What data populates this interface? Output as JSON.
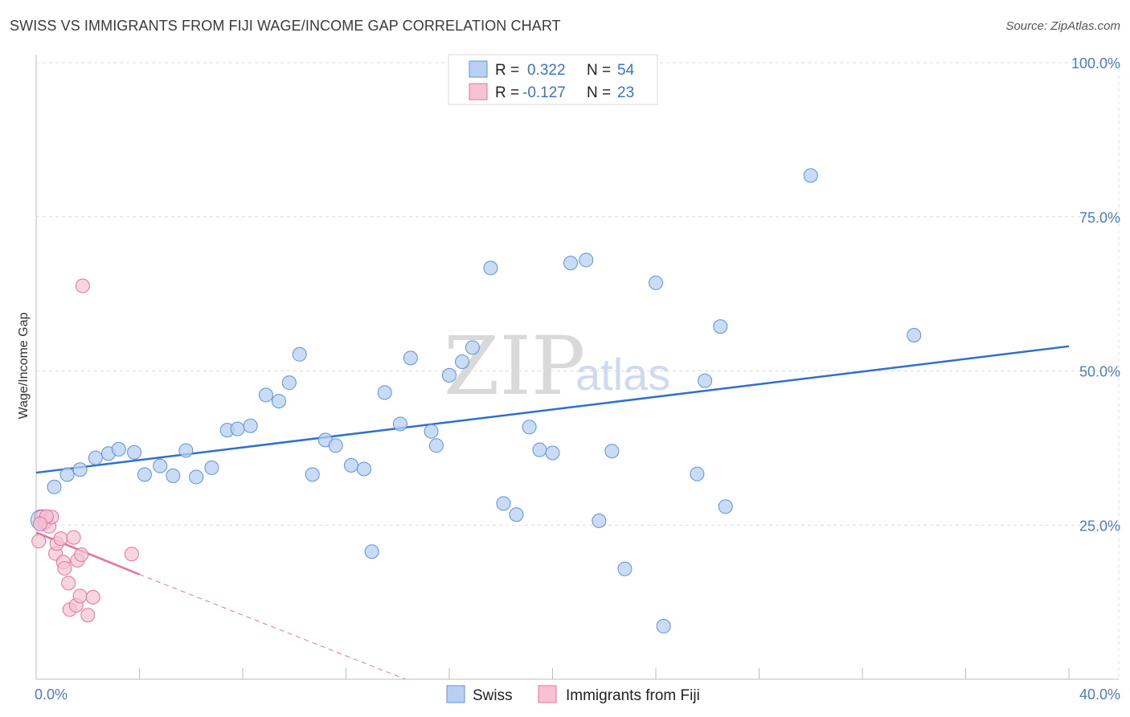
{
  "header": {
    "title": "SWISS VS IMMIGRANTS FROM FIJI WAGE/INCOME GAP CORRELATION CHART",
    "source": "Source: ZipAtlas.com"
  },
  "watermark": {
    "zip": "ZIP",
    "atlas": "atlas"
  },
  "colors": {
    "swiss": "#5b93db",
    "swiss_fill": "#b8d0f2",
    "fiji": "#e8719b",
    "fiji_fill": "#f7c3d4",
    "grid": "#dcdcdc",
    "axis_text": "#4a7cc9"
  },
  "legend": {
    "rows": [
      {
        "r_label": "R =",
        "r_value": "0.322",
        "n_label": "N =",
        "n_value": "54"
      },
      {
        "r_label": "R =",
        "r_value": "-0.127",
        "n_label": "N =",
        "n_value": "23"
      }
    ]
  },
  "bottom_legend": {
    "series1": "Swiss",
    "series2": "Immigrants from Fiji"
  },
  "chart_data": {
    "type": "scatter",
    "title": "SWISS VS IMMIGRANTS FROM FIJI WAGE/INCOME GAP CORRELATION CHART",
    "xlabel": "",
    "ylabel": "Wage/Income Gap",
    "xlim": [
      0,
      40
    ],
    "ylim": [
      0,
      100
    ],
    "x_tick_labels": [
      "0.0%",
      "40.0%"
    ],
    "y_ticks": [
      25,
      50,
      75,
      100
    ],
    "y_tick_labels": [
      "25.0%",
      "50.0%",
      "75.0%",
      "100.0%"
    ],
    "grid": true,
    "series": [
      {
        "name": "Swiss",
        "r": 0.322,
        "n": 54,
        "trend": {
          "x0": 0,
          "y0": 33.5,
          "x1": 40,
          "y1": 54.0
        },
        "points": [
          [
            0.2,
            25.5
          ],
          [
            0.7,
            31.2
          ],
          [
            1.2,
            33.2
          ],
          [
            1.7,
            34.0
          ],
          [
            2.3,
            35.9
          ],
          [
            2.8,
            36.6
          ],
          [
            3.2,
            37.3
          ],
          [
            3.8,
            36.8
          ],
          [
            4.2,
            33.2
          ],
          [
            4.8,
            34.6
          ],
          [
            5.3,
            33.0
          ],
          [
            5.8,
            37.1
          ],
          [
            6.2,
            32.8
          ],
          [
            6.8,
            34.3
          ],
          [
            7.4,
            40.4
          ],
          [
            7.8,
            40.6
          ],
          [
            8.3,
            41.1
          ],
          [
            8.9,
            46.1
          ],
          [
            9.4,
            45.1
          ],
          [
            9.8,
            48.1
          ],
          [
            10.2,
            52.7
          ],
          [
            10.7,
            33.2
          ],
          [
            11.2,
            38.8
          ],
          [
            11.6,
            37.9
          ],
          [
            12.2,
            34.7
          ],
          [
            12.7,
            34.1
          ],
          [
            13.0,
            20.7
          ],
          [
            13.5,
            46.5
          ],
          [
            14.1,
            41.4
          ],
          [
            14.5,
            52.1
          ],
          [
            15.3,
            40.2
          ],
          [
            15.5,
            37.9
          ],
          [
            16.0,
            49.3
          ],
          [
            16.5,
            51.5
          ],
          [
            16.9,
            53.8
          ],
          [
            17.6,
            66.7
          ],
          [
            18.1,
            28.5
          ],
          [
            18.6,
            26.7
          ],
          [
            19.1,
            40.9
          ],
          [
            19.5,
            37.2
          ],
          [
            20.0,
            36.7
          ],
          [
            20.7,
            67.5
          ],
          [
            21.3,
            68.0
          ],
          [
            21.8,
            25.7
          ],
          [
            22.3,
            37.0
          ],
          [
            22.8,
            17.9
          ],
          [
            24.0,
            64.3
          ],
          [
            24.3,
            8.6
          ],
          [
            25.6,
            33.3
          ],
          [
            25.9,
            48.4
          ],
          [
            26.5,
            57.2
          ],
          [
            26.7,
            28.0
          ],
          [
            30.0,
            81.7
          ],
          [
            34.0,
            55.8
          ]
        ]
      },
      {
        "name": "Immigrants from Fiji",
        "r": -0.127,
        "n": 23,
        "trend": {
          "x0": 0,
          "y0": 23.8,
          "x1": 4.0,
          "y1": 17.0
        },
        "trend_dashed": {
          "x0": 4.0,
          "y0": 17.0,
          "x1": 14.3,
          "y1": 0
        },
        "points": [
          [
            0.1,
            22.4
          ],
          [
            0.2,
            26.3
          ],
          [
            0.35,
            25.5
          ],
          [
            0.5,
            24.8
          ],
          [
            0.6,
            26.3
          ],
          [
            0.75,
            20.4
          ],
          [
            0.8,
            22.0
          ],
          [
            0.95,
            22.8
          ],
          [
            1.05,
            19.0
          ],
          [
            1.1,
            18.0
          ],
          [
            1.25,
            15.6
          ],
          [
            1.3,
            11.3
          ],
          [
            1.45,
            23.0
          ],
          [
            1.55,
            12.0
          ],
          [
            1.6,
            19.3
          ],
          [
            1.7,
            13.5
          ],
          [
            1.75,
            20.2
          ],
          [
            1.8,
            63.8
          ],
          [
            2.0,
            10.4
          ],
          [
            2.2,
            13.3
          ],
          [
            3.7,
            20.3
          ],
          [
            0.4,
            26.4
          ],
          [
            0.15,
            25.2
          ]
        ]
      }
    ]
  }
}
